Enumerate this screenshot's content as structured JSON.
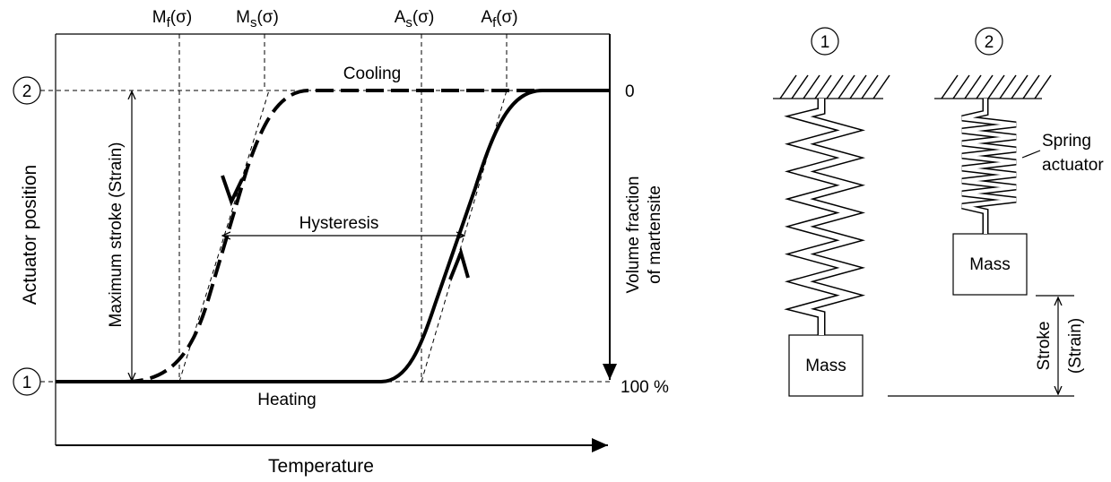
{
  "plot": {
    "temperature_labels": [
      {
        "symbol": "M",
        "sub": "f",
        "arg": "(σ)"
      },
      {
        "symbol": "M",
        "sub": "s",
        "arg": "(σ)"
      },
      {
        "symbol": "A",
        "sub": "s",
        "arg": "(σ)"
      },
      {
        "symbol": "A",
        "sub": "f",
        "arg": "(σ)"
      }
    ],
    "positions": [
      "2",
      "1"
    ],
    "cooling": "Cooling",
    "heating": "Heating",
    "hysteresis": "Hysteresis",
    "max_stroke": "Maximum stroke (Strain)",
    "y_axis": "Actuator position",
    "x_axis": "Temperature",
    "right_axis": [
      "Volume fraction",
      "of martensite"
    ],
    "right_ticks": [
      "0",
      "100 %"
    ]
  },
  "springs": {
    "states": [
      "1",
      "2"
    ],
    "mass": [
      "Mass",
      "Mass"
    ],
    "spring_label": [
      "Spring",
      "actuator"
    ],
    "stroke": [
      "Stroke",
      "(Strain)"
    ]
  }
}
